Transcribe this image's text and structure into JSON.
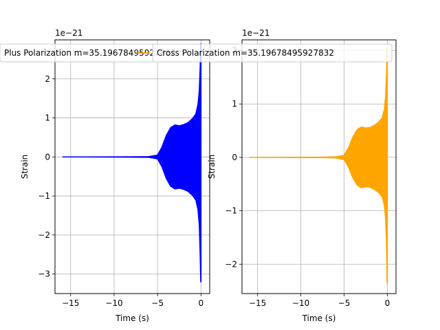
{
  "chart_data": [
    {
      "type": "line",
      "title": "",
      "xlabel": "Time (s)",
      "ylabel": "Strain",
      "offset_text": "1e−21",
      "legend": {
        "label": "Plus Polarization m=35.19678495927832",
        "placement": "top"
      },
      "color": "#0000ff",
      "grid": true,
      "xlim": [
        -16.8,
        1.0
      ],
      "ylim": [
        -3.5,
        3.0
      ],
      "xticks": [
        -15,
        -10,
        -5,
        0
      ],
      "xtick_labels": [
        "−15",
        "−10",
        "−5",
        "0"
      ],
      "yticks": [
        -3,
        -2,
        -1,
        0,
        1,
        2
      ],
      "ytick_labels": [
        "−3",
        "−2",
        "−1",
        "0",
        "1",
        "2"
      ],
      "series": [
        {
          "x": [
            -15.9,
            -8.0,
            -6.0,
            -5.0,
            -4.5,
            -4.0,
            -3.5,
            -3.0,
            -2.5,
            -2.0,
            -1.5,
            -1.0,
            -0.6,
            -0.35,
            -0.2,
            -0.1,
            -0.03,
            0.0
          ],
          "upper": [
            0.0,
            0.005,
            0.01,
            0.05,
            0.25,
            0.55,
            0.75,
            0.82,
            0.8,
            0.83,
            0.88,
            0.98,
            1.1,
            1.35,
            1.7,
            2.3,
            2.9,
            2.9
          ],
          "lower": [
            0.0,
            -0.005,
            -0.01,
            -0.05,
            -0.25,
            -0.55,
            -0.75,
            -0.82,
            -0.8,
            -0.83,
            -0.88,
            -0.98,
            -1.1,
            -1.35,
            -1.75,
            -2.5,
            -3.2,
            -3.2
          ]
        }
      ]
    },
    {
      "type": "line",
      "title": "",
      "xlabel": "Time (s)",
      "ylabel": "Strain",
      "offset_text": "1e−21",
      "legend": {
        "label": "Cross Polarization m=35.19678495927832",
        "placement": "top"
      },
      "color": "#ffa500",
      "grid": true,
      "xlim": [
        -16.8,
        1.0
      ],
      "ylim": [
        -2.55,
        2.2
      ],
      "xticks": [
        -15,
        -10,
        -5,
        0
      ],
      "xtick_labels": [
        "−15",
        "−10",
        "−5",
        "0"
      ],
      "yticks": [
        -2,
        -1,
        0,
        1,
        2
      ],
      "ytick_labels": [
        "−2",
        "−1",
        "0",
        "1",
        "2"
      ],
      "series": [
        {
          "x": [
            -15.9,
            -8.0,
            -6.0,
            -5.0,
            -4.5,
            -4.0,
            -3.5,
            -3.0,
            -2.5,
            -2.0,
            -1.5,
            -1.0,
            -0.6,
            -0.35,
            -0.2,
            -0.1,
            -0.03,
            0.0
          ],
          "upper": [
            0.0,
            0.004,
            0.01,
            0.04,
            0.18,
            0.38,
            0.52,
            0.57,
            0.55,
            0.56,
            0.6,
            0.66,
            0.74,
            0.9,
            1.15,
            1.55,
            2.05,
            2.05
          ],
          "lower": [
            0.0,
            -0.004,
            -0.01,
            -0.04,
            -0.18,
            -0.38,
            -0.52,
            -0.57,
            -0.55,
            -0.56,
            -0.6,
            -0.66,
            -0.74,
            -0.9,
            -1.15,
            -1.6,
            -2.35,
            -2.35
          ]
        }
      ]
    }
  ]
}
